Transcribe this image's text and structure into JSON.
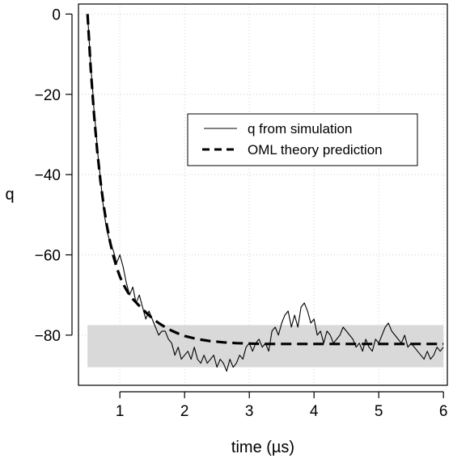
{
  "chart_data": {
    "type": "line",
    "xlabel": "time (µs)",
    "ylabel": "q",
    "xlim": [
      0.36,
      6.06
    ],
    "ylim": [
      -92.5,
      2.5
    ],
    "x_ticks": [
      1,
      2,
      3,
      4,
      5,
      6
    ],
    "y_ticks": [
      0,
      -20,
      -40,
      -60,
      -80
    ],
    "x_tick_labels": [
      "1",
      "2",
      "3",
      "4",
      "5",
      "6"
    ],
    "y_tick_labels": [
      "0",
      "−20",
      "−40",
      "−60",
      "−80"
    ],
    "grid": true,
    "legend_position": "top-right",
    "band": {
      "x_range": [
        0.5,
        6.0
      ],
      "y_range": [
        -88,
        -77.5
      ],
      "color": "#d9d9d9"
    },
    "series": [
      {
        "name": "q from simulation",
        "style": "solid",
        "color": "#000000",
        "x": [
          0.5,
          0.52,
          0.55,
          0.58,
          0.6,
          0.63,
          0.66,
          0.7,
          0.73,
          0.76,
          0.8,
          0.85,
          0.9,
          0.95,
          1.0,
          1.05,
          1.1,
          1.15,
          1.2,
          1.25,
          1.3,
          1.35,
          1.4,
          1.45,
          1.5,
          1.55,
          1.6,
          1.65,
          1.7,
          1.75,
          1.8,
          1.85,
          1.9,
          1.95,
          2.0,
          2.05,
          2.1,
          2.15,
          2.2,
          2.25,
          2.3,
          2.35,
          2.4,
          2.45,
          2.5,
          2.55,
          2.6,
          2.65,
          2.7,
          2.75,
          2.8,
          2.85,
          2.9,
          2.95,
          3.0,
          3.05,
          3.1,
          3.15,
          3.2,
          3.25,
          3.3,
          3.35,
          3.4,
          3.45,
          3.5,
          3.55,
          3.6,
          3.65,
          3.7,
          3.75,
          3.8,
          3.85,
          3.9,
          3.95,
          4.0,
          4.05,
          4.1,
          4.15,
          4.2,
          4.25,
          4.3,
          4.35,
          4.4,
          4.45,
          4.5,
          4.55,
          4.6,
          4.65,
          4.7,
          4.75,
          4.8,
          4.85,
          4.9,
          4.95,
          5.0,
          5.05,
          5.1,
          5.15,
          5.2,
          5.25,
          5.3,
          5.35,
          5.4,
          5.45,
          5.5,
          5.55,
          5.6,
          5.65,
          5.7,
          5.75,
          5.8,
          5.85,
          5.9,
          5.95,
          6.0
        ],
        "values": [
          0,
          -5,
          -13,
          -19,
          -24,
          -29,
          -35,
          -41,
          -46,
          -50,
          -54,
          -57,
          -59,
          -62,
          -60,
          -63,
          -67,
          -70,
          -68,
          -72,
          -70,
          -73,
          -76,
          -74,
          -76,
          -78,
          -80,
          -79,
          -79,
          -81,
          -82,
          -85,
          -83,
          -86,
          -85,
          -84,
          -86,
          -83,
          -86,
          -87,
          -85,
          -87,
          -86,
          -85,
          -88,
          -86,
          -87,
          -89,
          -86,
          -88,
          -87,
          -85,
          -86,
          -83,
          -82,
          -84,
          -82,
          -81,
          -83,
          -82,
          -84,
          -79,
          -78,
          -80,
          -77,
          -75,
          -74,
          -78,
          -75,
          -78,
          -73,
          -72,
          -74,
          -77,
          -76,
          -80,
          -79,
          -82,
          -79,
          -80,
          -82,
          -81,
          -80,
          -78,
          -79,
          -80,
          -81,
          -83,
          -82,
          -84,
          -81,
          -83,
          -84,
          -81,
          -82,
          -80,
          -78,
          -77,
          -79,
          -80,
          -81,
          -82,
          -80,
          -83,
          -82,
          -83,
          -84,
          -85,
          -86,
          -84,
          -86,
          -85,
          -83,
          -84,
          -83
        ]
      },
      {
        "name": "OML theory prediction",
        "style": "dashed",
        "color": "#000000",
        "x": [
          0.5,
          0.55,
          0.6,
          0.65,
          0.7,
          0.75,
          0.8,
          0.85,
          0.9,
          0.95,
          1.0,
          1.05,
          1.1,
          1.15,
          1.2,
          1.3,
          1.4,
          1.5,
          1.6,
          1.7,
          1.8,
          1.9,
          2.0,
          2.2,
          2.4,
          2.6,
          2.8,
          3.0,
          3.2,
          3.4,
          3.6,
          3.8,
          4.0,
          4.2,
          4.4,
          4.6,
          4.8,
          5.0,
          5.2,
          5.4,
          5.6,
          5.8,
          6.0
        ],
        "values": [
          0,
          -13.7,
          -24.9,
          -34.1,
          -41.6,
          -47.8,
          -52.8,
          -56.9,
          -60.3,
          -63.1,
          -65.4,
          -67.2,
          -68.7,
          -70.0,
          -71.0,
          -72.7,
          -74.3,
          -75.8,
          -77.0,
          -78.0,
          -78.9,
          -79.6,
          -80.2,
          -81.0,
          -81.5,
          -81.8,
          -82.0,
          -82.1,
          -82.2,
          -82.2,
          -82.2,
          -82.2,
          -82.2,
          -82.2,
          -82.2,
          -82.2,
          -82.2,
          -82.2,
          -82.2,
          -82.2,
          -82.2,
          -82.2,
          -82.2
        ]
      }
    ]
  }
}
